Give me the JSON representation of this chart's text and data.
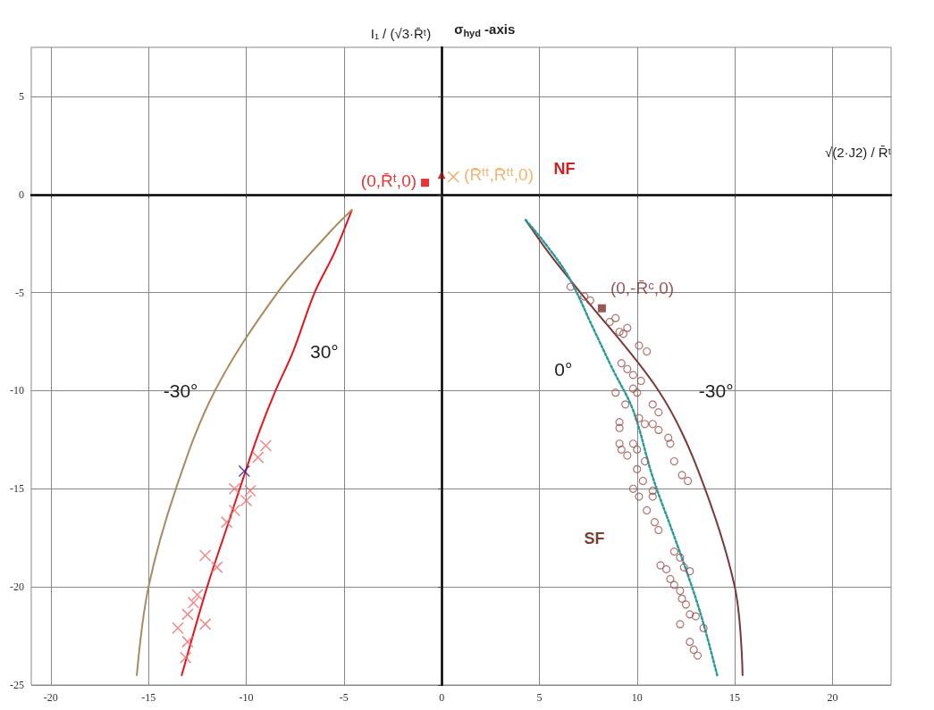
{
  "chart_data": {
    "type": "line",
    "xlabel": "√(2·J2) / R̄ᵗ",
    "ylabel": "I₁ / (√3·R̄ᵗ)",
    "xlim": [
      -21,
      23
    ],
    "ylim": [
      -25,
      7.5
    ],
    "xticks": [
      -20,
      -15,
      -10,
      -5,
      0,
      5,
      10,
      15,
      20
    ],
    "yticks": [
      -25,
      -20,
      -15,
      -10,
      -5,
      0,
      5
    ],
    "grid": true,
    "series": [
      {
        "name": "30°",
        "color": "#e8141c",
        "marker": "none",
        "line_style": "solid",
        "x": [
          -4.6,
          -5.5,
          -6.5,
          -7.6,
          -8.5,
          -9.3,
          -10.0,
          -11.0,
          -12.0,
          -13.3
        ],
        "values": [
          -0.8,
          -3,
          -5,
          -8,
          -10,
          -12,
          -14,
          -17,
          -20,
          -24.5
        ]
      },
      {
        "name": "-30°",
        "color": "#a88a60",
        "marker": "none",
        "line_style": "solid",
        "x": [
          -4.6,
          -5.8,
          -8.4,
          -11.6,
          -13.6,
          -15.0,
          -15.6
        ],
        "values": [
          -0.8,
          -2,
          -5,
          -10,
          -15,
          -20,
          -24.5
        ]
      },
      {
        "name": "-30°",
        "color": "#7a3838",
        "marker": "none",
        "line_style": "solid",
        "x": [
          4.3,
          5.5,
          7.1,
          11.1,
          13.1,
          15.0,
          15.4
        ],
        "values": [
          -1.3,
          -3,
          -5,
          -10,
          -14,
          -20,
          -24.5
        ]
      },
      {
        "name": "0°",
        "color": "#2a9a9a",
        "marker": "none",
        "line_style": "dotted",
        "x": [
          4.3,
          5.3,
          6.5,
          7.7,
          8.75,
          9.8,
          10.8,
          12.0,
          13.2,
          14.1
        ],
        "values": [
          -1.3,
          -2.5,
          -4.2,
          -6.7,
          -8.9,
          -11.0,
          -14.4,
          -17.7,
          -21.2,
          -24.5
        ]
      },
      {
        "type": "scatter",
        "color": "#e87070",
        "marker": "cross",
        "x": [
          -9.0,
          -9.4,
          -10.6,
          -9.8,
          -10.0,
          -10.6,
          -11.0,
          -12.1,
          -11.5,
          -12.5,
          -12.7,
          -13.0,
          -13.5,
          -12.1,
          -13.0,
          -13.1
        ],
        "values": [
          -12.8,
          -13.4,
          -15.0,
          -15.1,
          -15.6,
          -16.1,
          -16.7,
          -18.4,
          -19.0,
          -20.4,
          -20.8,
          -21.4,
          -22.1,
          -21.9,
          -22.8,
          -23.6
        ]
      },
      {
        "type": "scatter",
        "color": "#3020a0",
        "marker": "cross",
        "x": [
          -10.1
        ],
        "values": [
          -14.1
        ]
      },
      {
        "type": "scatter",
        "color": "#9a5050",
        "marker": "circle",
        "x": [
          6.6,
          7.3,
          7.6,
          8.9,
          8.6,
          9.5,
          9.1,
          9.3,
          10.1,
          10.5,
          9.2,
          9.5,
          9.8,
          10.2,
          9.8,
          8.9,
          10.0,
          9.4,
          10.8,
          11.1,
          10.1,
          10.4,
          10.8,
          11.1,
          9.1,
          9.1,
          11.6,
          11.7,
          9.1,
          9.2,
          9.8,
          10.0,
          9.5,
          10.4,
          11.9,
          10.0,
          12.3,
          12.6,
          10.3,
          10.8,
          10.8,
          9.8,
          10.1,
          10.5,
          10.9,
          11.1,
          11.9,
          12.2,
          11.2,
          11.5,
          12.4,
          12.7,
          11.7,
          11.9,
          12.2,
          12.3,
          12.5,
          12.7,
          13.0,
          13.4,
          12.2,
          12.7,
          12.9,
          13.1
        ],
        "values": [
          -4.7,
          -5.2,
          -5.4,
          -6.3,
          -6.5,
          -6.8,
          -7.0,
          -7.1,
          -7.7,
          -8.0,
          -8.6,
          -8.9,
          -9.2,
          -9.5,
          -9.9,
          -10.1,
          -10.1,
          -10.7,
          -10.7,
          -11.1,
          -11.4,
          -11.7,
          -11.7,
          -12.0,
          -11.6,
          -11.9,
          -12.4,
          -12.7,
          -12.7,
          -13.0,
          -12.7,
          -13.0,
          -13.3,
          -13.6,
          -13.6,
          -14.0,
          -14.3,
          -14.6,
          -14.6,
          -15.1,
          -15.4,
          -15.0,
          -15.4,
          -16.1,
          -16.7,
          -17.1,
          -18.2,
          -18.5,
          -18.9,
          -19.1,
          -19.0,
          -19.2,
          -19.6,
          -19.9,
          -20.2,
          -20.6,
          -20.9,
          -21.4,
          -21.5,
          -22.1,
          -21.9,
          -22.8,
          -23.2,
          -23.5
        ]
      },
      {
        "type": "scatter",
        "name": "(0,-R̄ᶜ,0)",
        "color": "#7a3030",
        "marker": "square",
        "x": [
          8.2
        ],
        "values": [
          -5.8
        ]
      },
      {
        "type": "scatter",
        "name": "(0,R̄ᵗ,0)",
        "color": "#e00000",
        "marker": "square",
        "x": [
          -0.85
        ],
        "values": [
          0.6
        ]
      },
      {
        "type": "scatter",
        "color": "#a01010",
        "marker": "triangle",
        "x": [
          0
        ],
        "values": [
          1.0
        ]
      },
      {
        "type": "scatter",
        "name": "(R̄ᵗᵗ,R̄ᵗᵗ,0)",
        "color": "#f0a050",
        "marker": "cross",
        "x": [
          0.6
        ],
        "values": [
          0.9
        ]
      }
    ],
    "annotations": [
      "σ$_{hyd}$ -axis",
      "NF",
      "SF"
    ]
  }
}
